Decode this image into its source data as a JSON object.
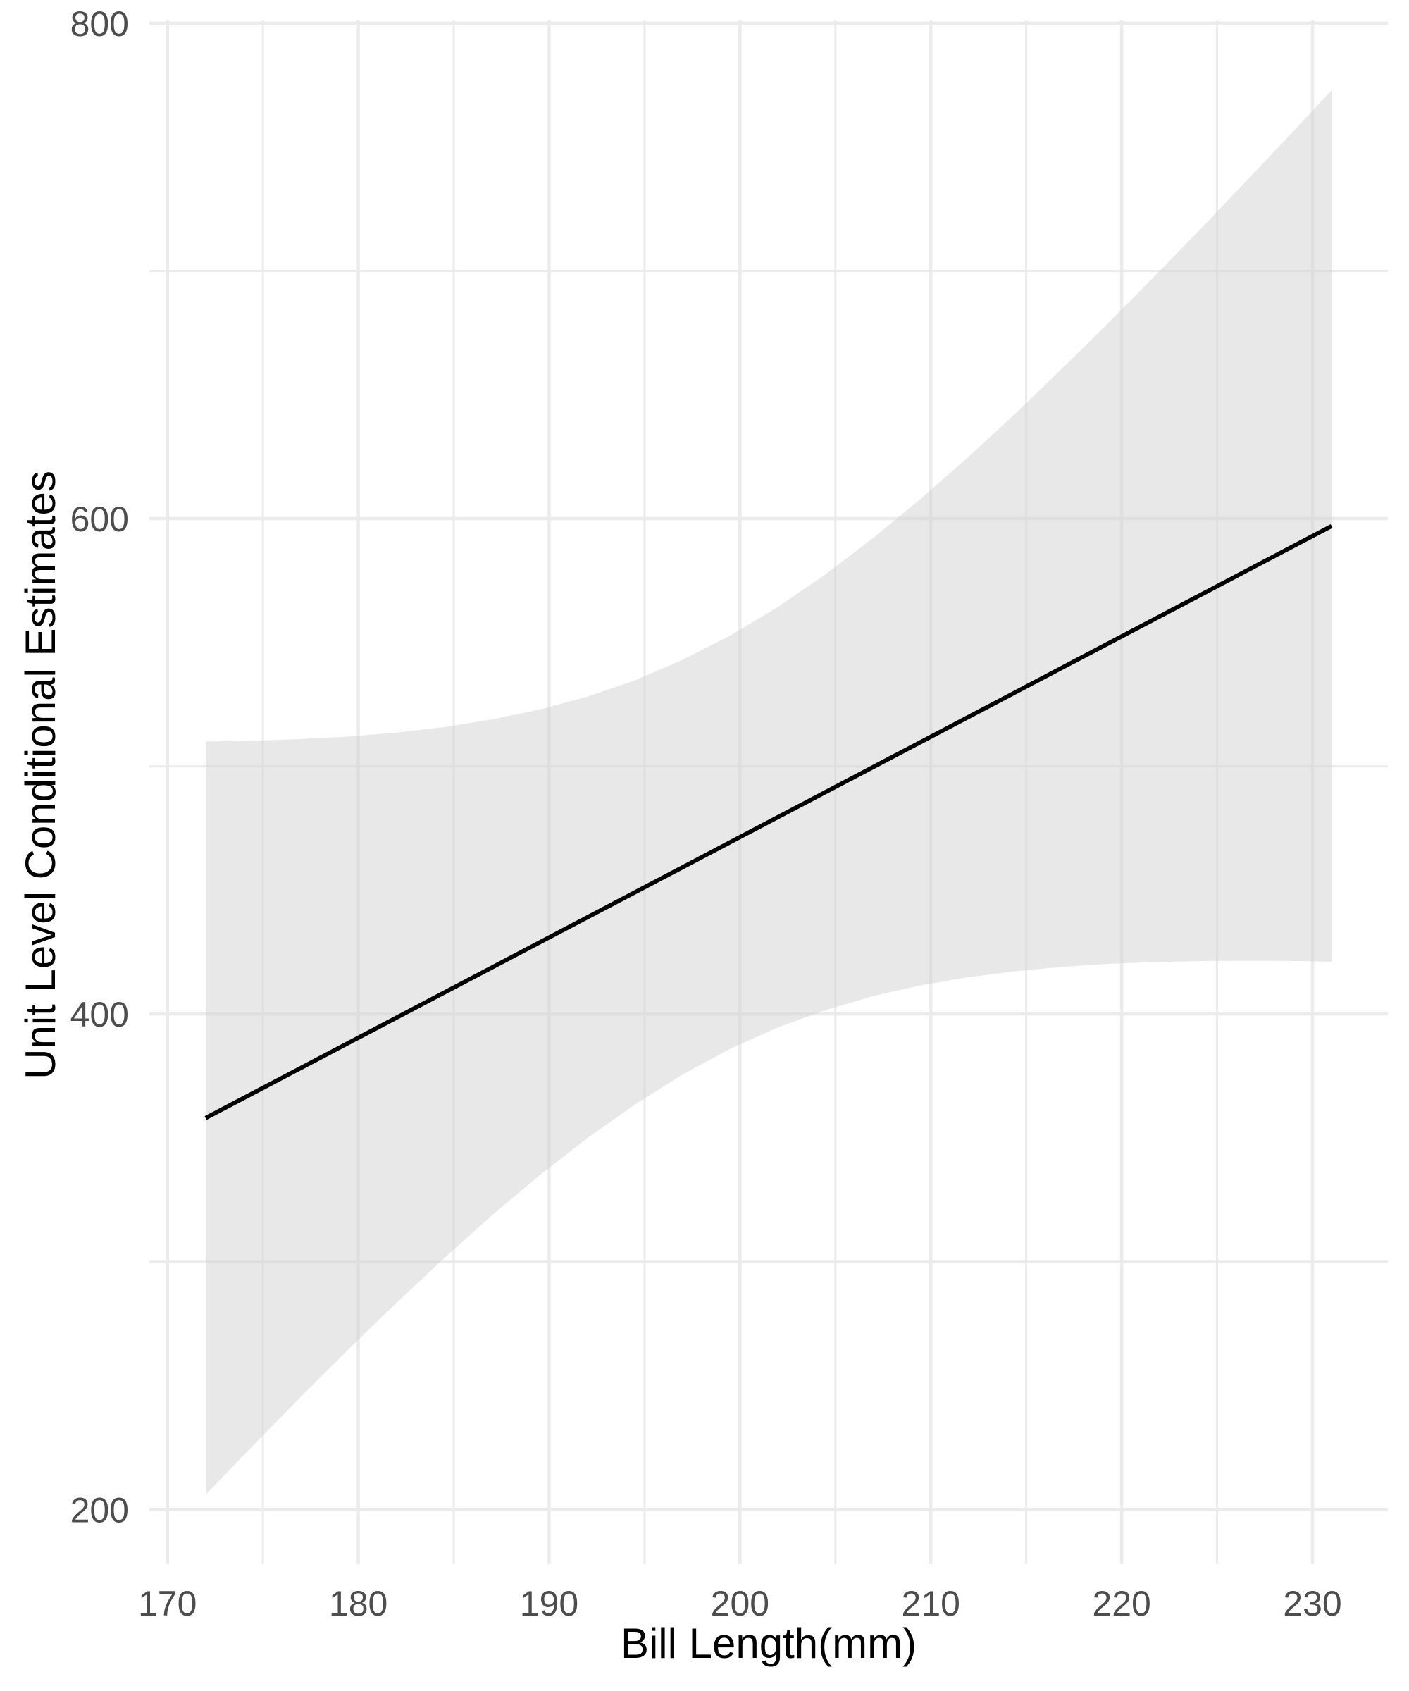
{
  "chart_data": {
    "type": "line",
    "title": "",
    "xlabel": "Bill Length(mm)",
    "ylabel": "Unit Level Conditional Estimates",
    "x_ticks": [
      170,
      180,
      190,
      200,
      210,
      220,
      230
    ],
    "y_ticks": [
      200,
      400,
      600,
      800
    ],
    "minor_x_ticks": [
      175,
      185,
      195,
      205,
      215,
      225
    ],
    "minor_y_ticks": [
      300,
      500,
      700
    ],
    "xlim": [
      169.05,
      233.95
    ],
    "ylim": [
      177.9,
      801.1
    ],
    "grid": "major-and-minor",
    "legend": "none",
    "trend_line": {
      "x1": 172,
      "y1": 358,
      "x2": 231,
      "y2": 597
    },
    "ribbon": {
      "x": [
        172,
        174.5,
        177,
        179.5,
        182,
        184.5,
        187,
        189.5,
        192,
        194.5,
        197,
        199.5,
        202,
        204.5,
        207,
        209.5,
        212,
        214.5,
        217,
        219.5,
        222,
        224.5,
        227,
        229,
        231
      ],
      "lower": [
        206.0,
        225.9,
        245.6,
        264.8,
        283.4,
        301.4,
        318.7,
        334.9,
        349.9,
        363.5,
        375.6,
        386.0,
        394.6,
        401.6,
        407.3,
        411.6,
        414.9,
        417.3,
        419.1,
        420.3,
        421.0,
        421.4,
        421.5,
        421.4,
        421.1
      ],
      "upper": [
        510.0,
        510.3,
        511.0,
        512.0,
        513.6,
        515.8,
        518.9,
        522.9,
        528.1,
        534.7,
        543.0,
        552.8,
        564.4,
        577.6,
        592.3,
        608.2,
        625.1,
        642.9,
        661.5,
        680.5,
        700.0,
        719.8,
        740.1,
        756.4,
        772.9
      ]
    }
  },
  "colors": {
    "background": "#ffffff",
    "grid": "#ebebeb",
    "tick_text": "#4d4d4d",
    "axis_title_text": "#000000",
    "trend_line": "#000000",
    "ribbon_fill": "#d2d2d2",
    "ribbon_opacity": 0.5
  }
}
